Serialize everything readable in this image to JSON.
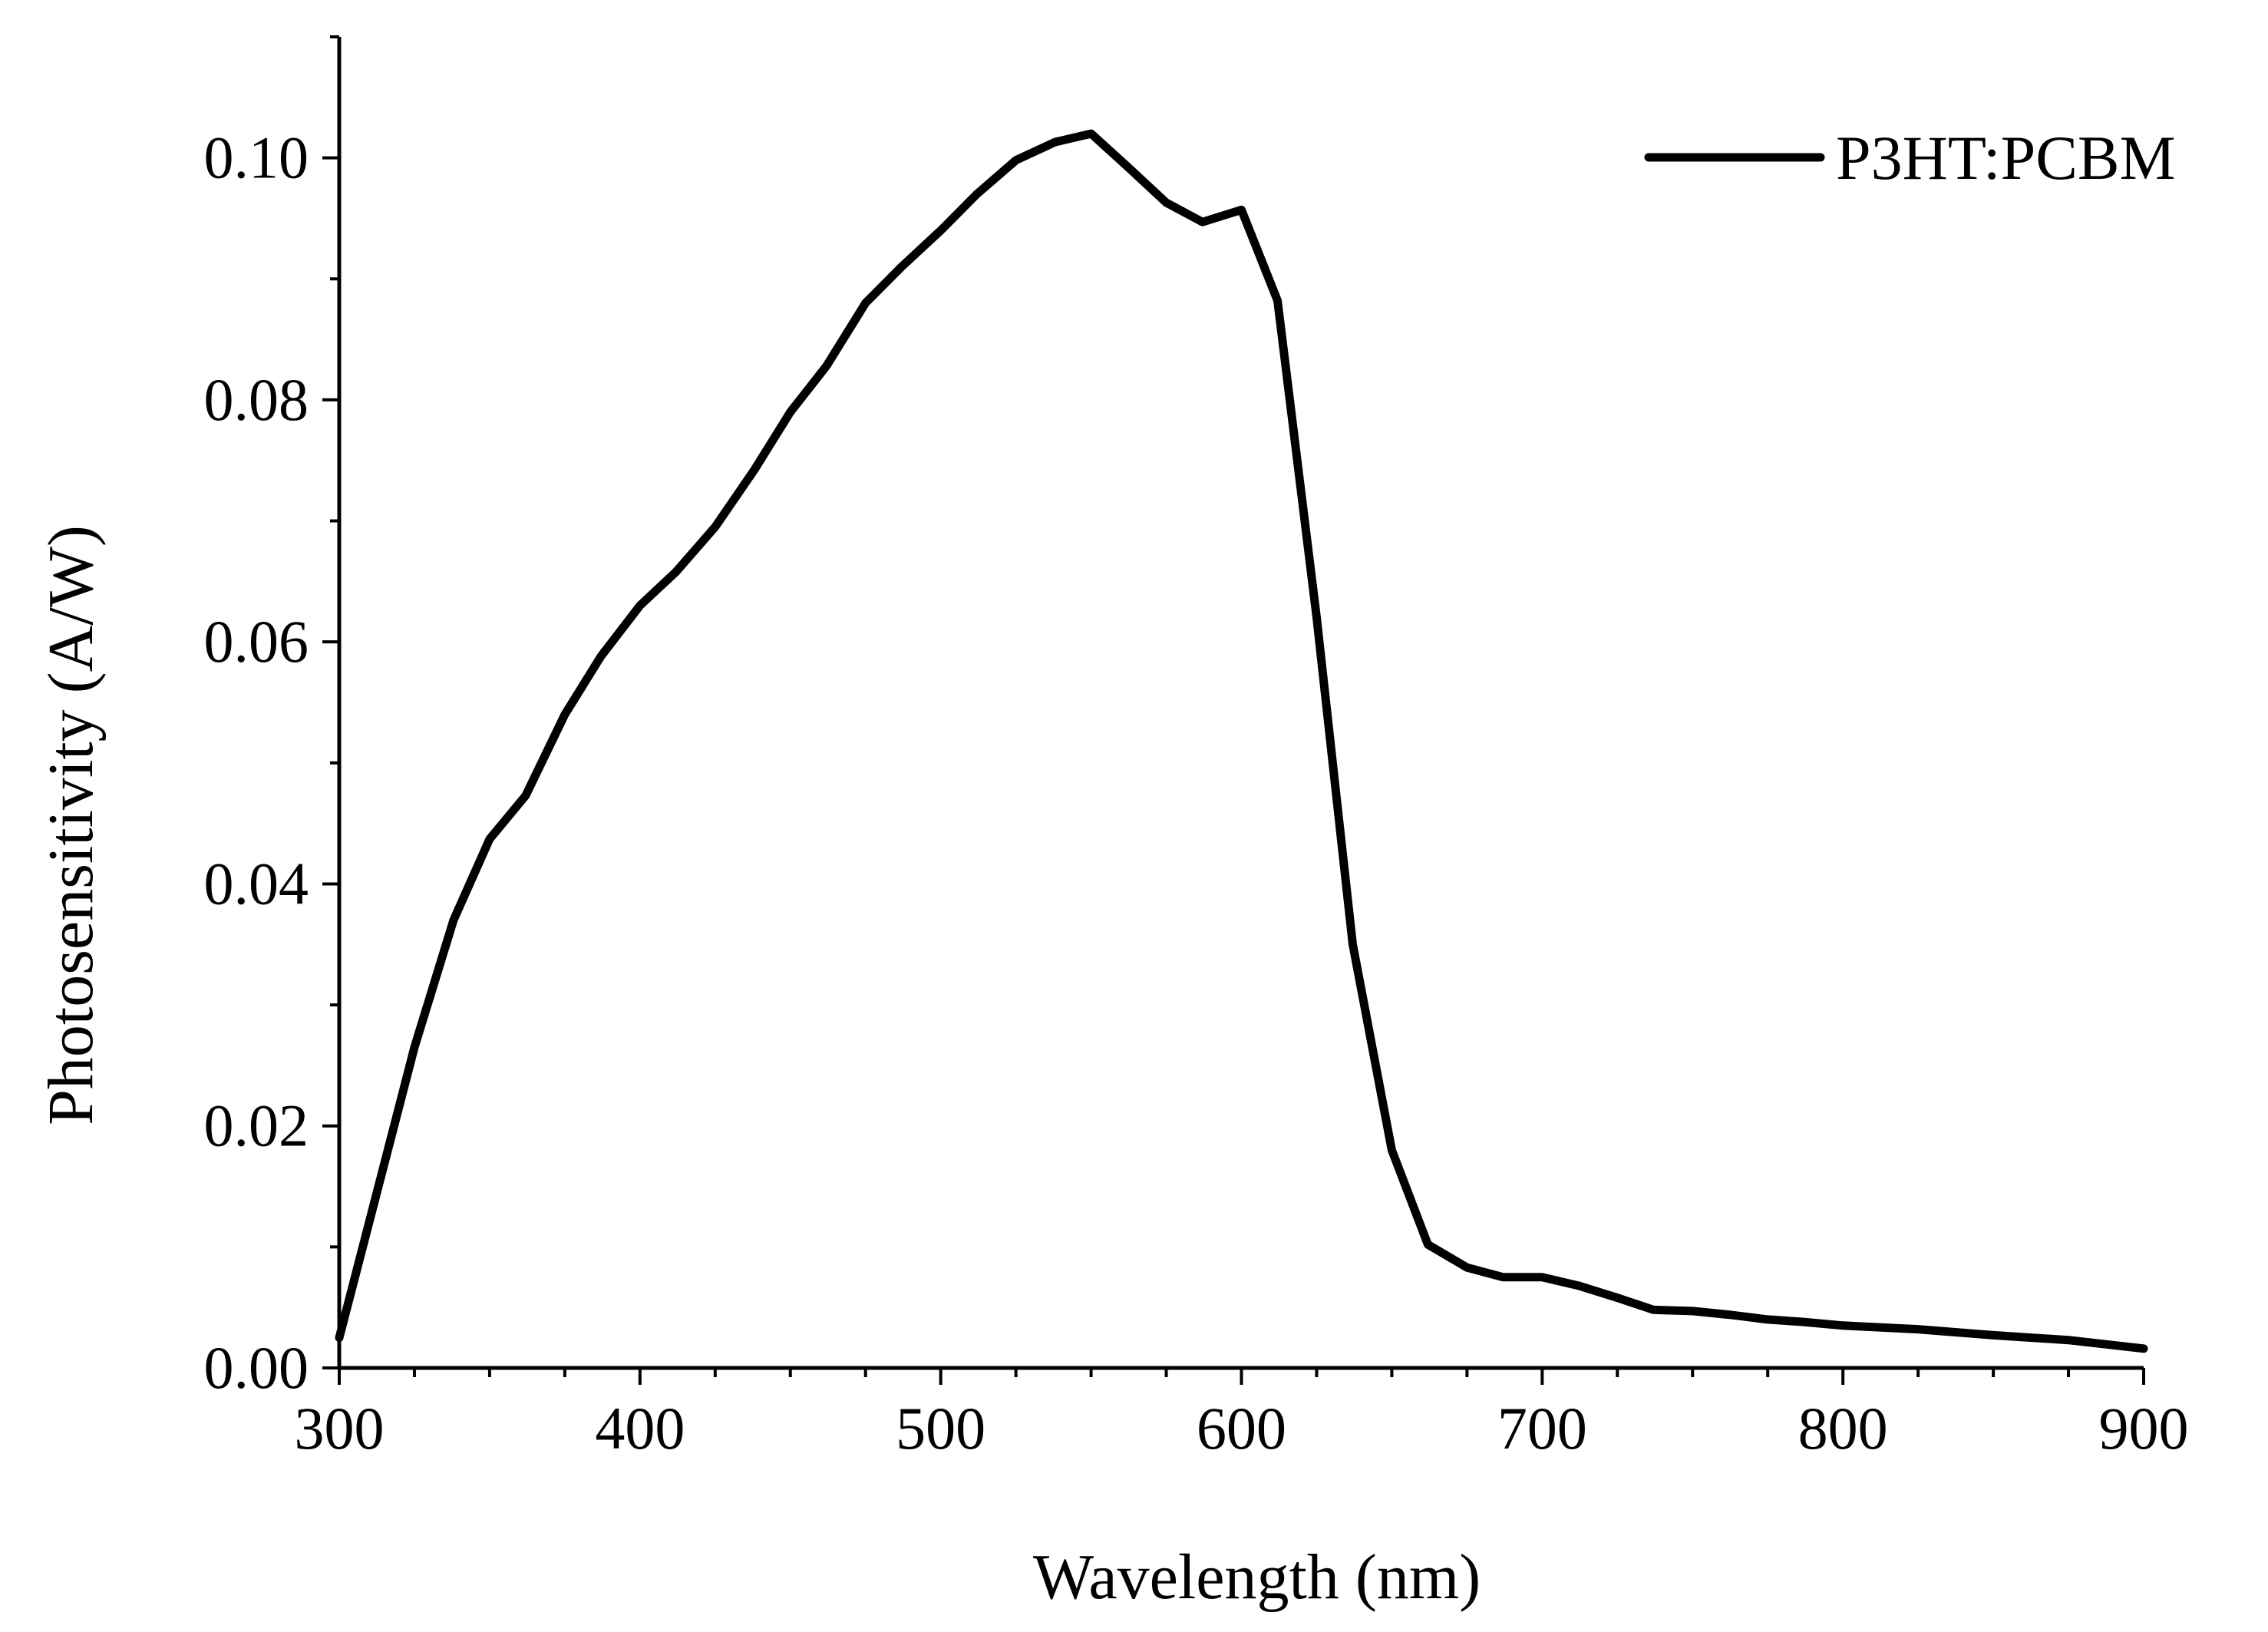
{
  "chart_data": {
    "type": "line",
    "title": "",
    "xlabel": "Wavelength (nm)",
    "ylabel": "Photosensitivity (A/W)",
    "xlim": [
      300,
      900
    ],
    "ylim": [
      0.0,
      0.11
    ],
    "x_major_ticks": [
      300,
      400,
      500,
      600,
      700,
      800,
      900
    ],
    "x_tick_labels": [
      "300",
      "400",
      "500",
      "600",
      "700",
      "800",
      "900"
    ],
    "x_minor_step": 25,
    "y_major_ticks": [
      0.0,
      0.02,
      0.04,
      0.06,
      0.08,
      0.1
    ],
    "y_tick_labels": [
      "0.00",
      "0.02",
      "0.04",
      "0.06",
      "0.08",
      "0.10"
    ],
    "y_minor_step": 0.01,
    "grid": false,
    "legend_position": "top-right",
    "series": [
      {
        "name": "P3HT:PCBM",
        "color": "#000000",
        "x": [
          300,
          312,
          325,
          338,
          350,
          362,
          375,
          387,
          400,
          412,
          425,
          438,
          450,
          462,
          475,
          487,
          500,
          512,
          525,
          538,
          550,
          562,
          575,
          587,
          600,
          612,
          625,
          637,
          650,
          662,
          675,
          687,
          700,
          712,
          725,
          737,
          750,
          762,
          775,
          787,
          800,
          825,
          850,
          875,
          900
        ],
        "y": [
          0.0025,
          0.014,
          0.0265,
          0.037,
          0.0437,
          0.0473,
          0.054,
          0.0588,
          0.063,
          0.0658,
          0.0695,
          0.0742,
          0.079,
          0.0828,
          0.088,
          0.091,
          0.094,
          0.097,
          0.0998,
          0.1013,
          0.102,
          0.0993,
          0.0963,
          0.0947,
          0.0957,
          0.0882,
          0.062,
          0.035,
          0.018,
          0.0102,
          0.0083,
          0.0075,
          0.0075,
          0.0068,
          0.0058,
          0.0048,
          0.0047,
          0.0044,
          0.004,
          0.0038,
          0.0035,
          0.0032,
          0.0027,
          0.0023,
          0.0016
        ]
      }
    ]
  }
}
